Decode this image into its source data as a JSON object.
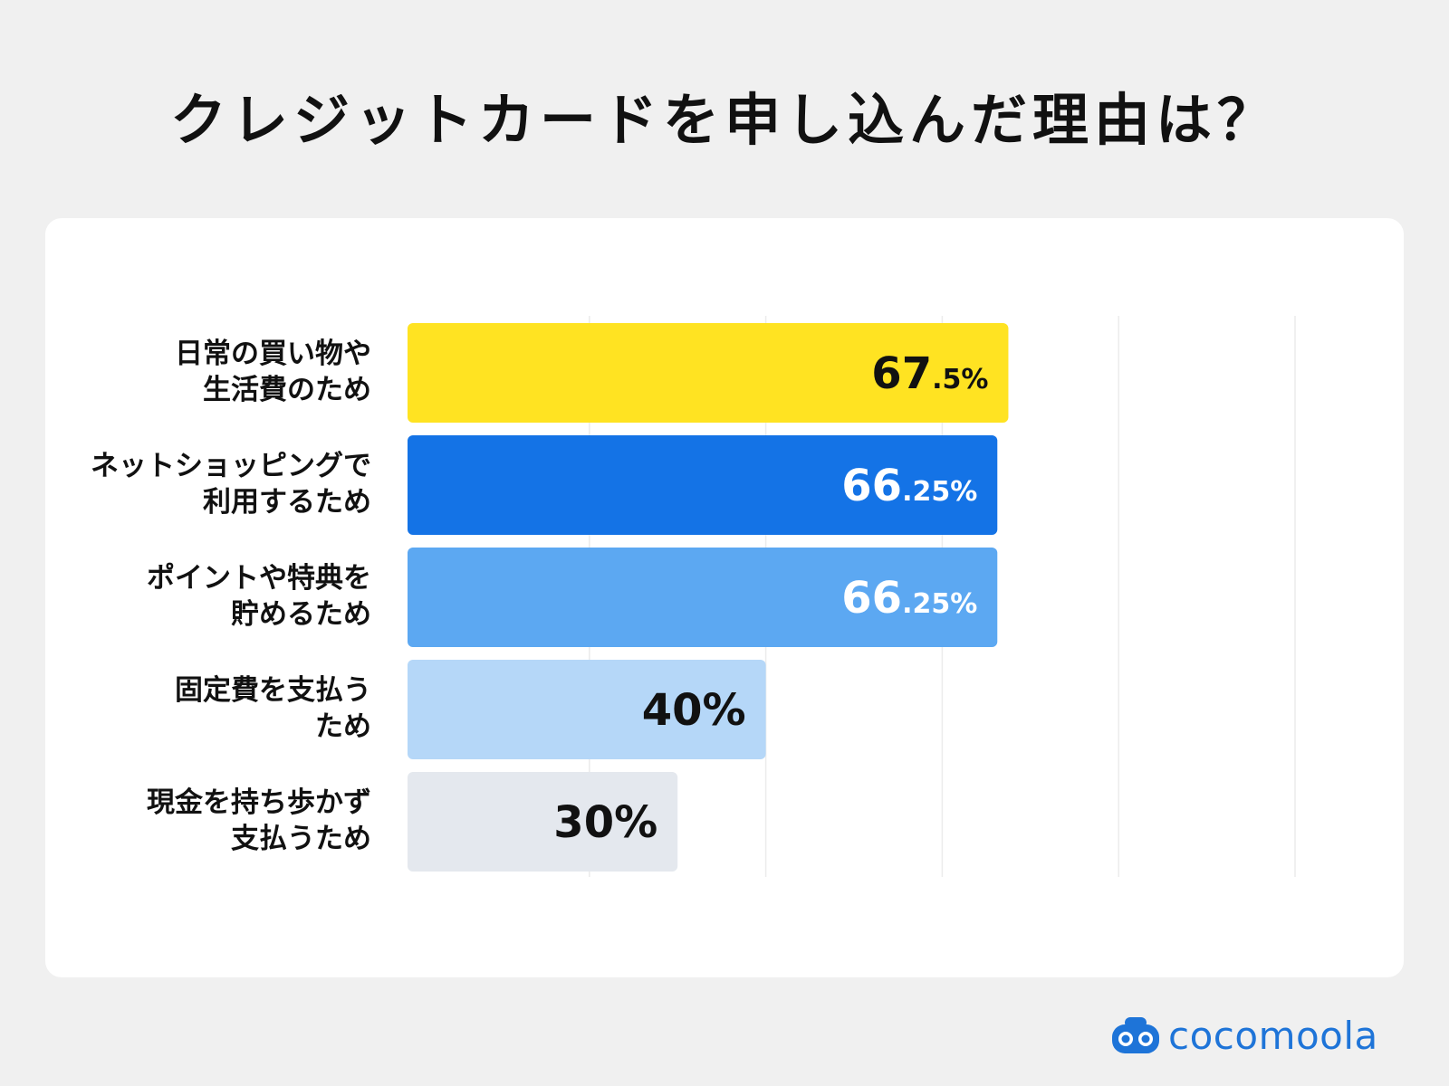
{
  "title": "クレジットカードを申し込んだ理由は？",
  "logo_text": "cocomoola",
  "chart_data": {
    "type": "bar",
    "orientation": "horizontal",
    "title": "クレジットカードを申し込んだ理由は？",
    "categories": [
      [
        "日常の買い物や",
        "生活費のため"
      ],
      [
        "ネットショッピングで",
        "利用するため"
      ],
      [
        "ポイントや特典を",
        "貯めるため"
      ],
      [
        "固定費を支払う",
        "ため"
      ],
      [
        "現金を持ち歩かず",
        "支払うため"
      ]
    ],
    "values": [
      67.5,
      66.25,
      66.25,
      40,
      30
    ],
    "value_labels": [
      {
        "main": "67",
        "sub": ".5%"
      },
      {
        "main": "66",
        "sub": ".25%"
      },
      {
        "main": "66",
        "sub": ".25%"
      },
      {
        "main": "40%",
        "sub": ""
      },
      {
        "main": "30%",
        "sub": ""
      }
    ],
    "bar_colors": [
      "#ffe322",
      "#1473e6",
      "#5ca8f2",
      "#b5d7f8",
      "#e4e8ee"
    ],
    "label_colors": [
      "#111111",
      "#ffffff",
      "#ffffff",
      "#111111",
      "#111111"
    ],
    "xlim": [
      0,
      100
    ],
    "grid": true,
    "gridline_count": 5
  }
}
